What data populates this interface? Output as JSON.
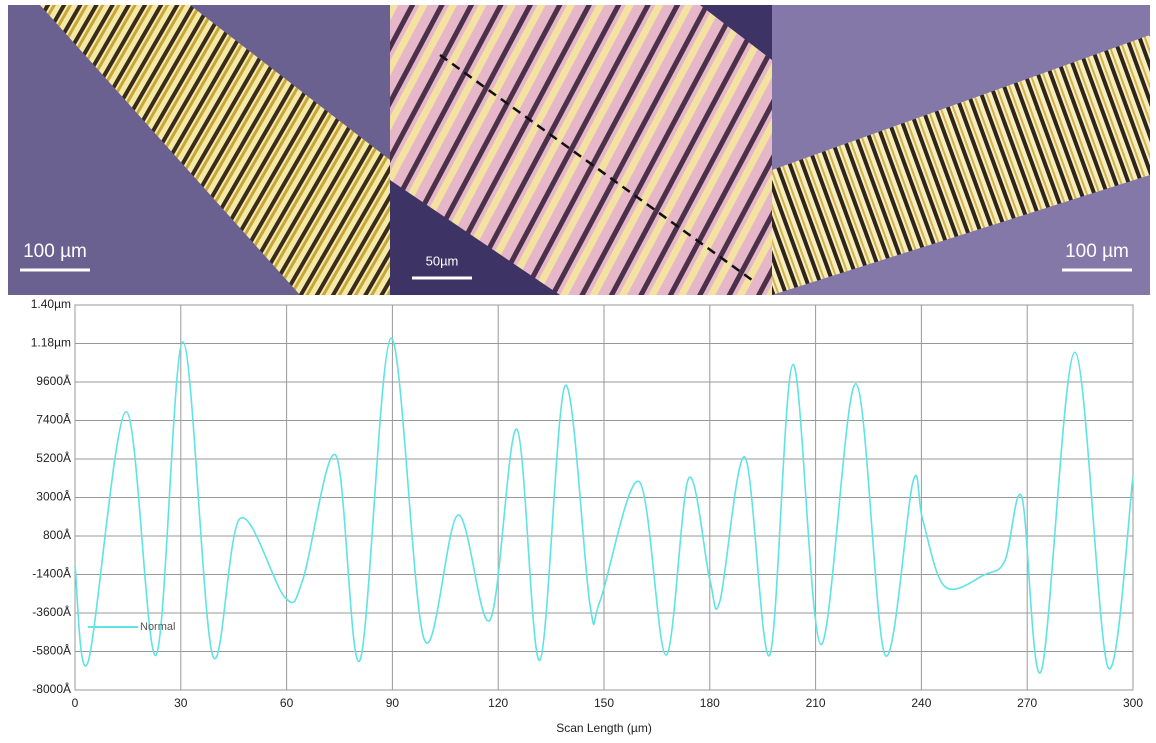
{
  "images": [
    {
      "scale_label": "100 µm"
    },
    {
      "scale_label": "50µm"
    },
    {
      "scale_label": "100 µm"
    }
  ],
  "chart_data": {
    "type": "line",
    "x_label": "Scan Length (µm)",
    "xlim": [
      0,
      300
    ],
    "xticks": [
      0,
      30,
      60,
      90,
      120,
      150,
      180,
      210,
      240,
      270,
      300
    ],
    "ylim": [
      -8000,
      14000
    ],
    "yticks": [
      {
        "value": -8000,
        "label": "-8000Å"
      },
      {
        "value": -5800,
        "label": "-5800Å"
      },
      {
        "value": -3600,
        "label": "-3600Å"
      },
      {
        "value": -1400,
        "label": "-1400Å"
      },
      {
        "value": 800,
        "label": "800Å"
      },
      {
        "value": 3000,
        "label": "3000Å"
      },
      {
        "value": 5200,
        "label": "5200Å"
      },
      {
        "value": 7400,
        "label": "7400Å"
      },
      {
        "value": 9600,
        "label": "9600Å"
      },
      {
        "value": 11800,
        "label": "1.18µm"
      },
      {
        "value": 14000,
        "label": "1.40µm"
      }
    ],
    "grid": true,
    "x": [
      0,
      3.7,
      14.5,
      23,
      30.6,
      39,
      46.8,
      59.5,
      64.6,
      74,
      80.8,
      89.6,
      99,
      108.6,
      117.7,
      125.3,
      131.8,
      139,
      146,
      148.9,
      160,
      167.6,
      174,
      180,
      182.9,
      190,
      197,
      203.6,
      211.5,
      221.4,
      229.7,
      237.6,
      240.4,
      246.7,
      258,
      263.7,
      268.5,
      274,
      283.5,
      292.9,
      300
    ],
    "series": [
      {
        "name": "Normal",
        "color": "#5fe3e3",
        "values": [
          -900,
          -6400,
          7900,
          -6000,
          11900,
          -6000,
          1800,
          -2700,
          -1700,
          5400,
          -6300,
          12100,
          -5100,
          2000,
          -4000,
          6900,
          -6300,
          9400,
          -3100,
          -2900,
          3900,
          -6000,
          4100,
          -1700,
          -2900,
          5300,
          -6000,
          10600,
          -5400,
          9500,
          -6000,
          3900,
          1700,
          -2100,
          -1400,
          -600,
          3000,
          -6900,
          11300,
          -6700,
          4200
        ]
      }
    ]
  }
}
